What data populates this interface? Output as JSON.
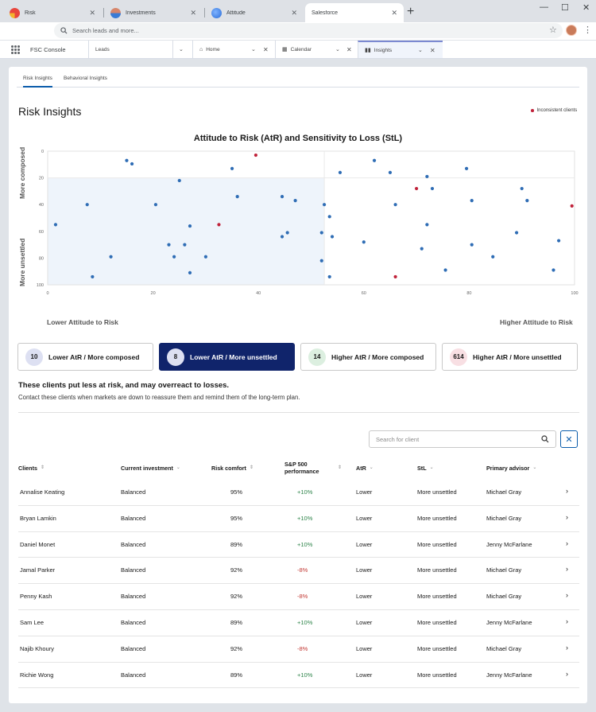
{
  "browser": {
    "tabs": [
      {
        "label": "Risk",
        "color": "#e8453c"
      },
      {
        "label": "Investments",
        "color": "#d7866b"
      },
      {
        "label": "Attitude",
        "color": "#2a6dd8"
      },
      {
        "label": "Salesforce",
        "color": ""
      }
    ],
    "search_placeholder": "Search leads and more..."
  },
  "console": {
    "app_name": "FSC Console",
    "tabs": [
      {
        "label": "Leads"
      },
      {
        "label": "Home",
        "icon": "home-icon"
      },
      {
        "label": "Calendar",
        "icon": "calendar-icon"
      },
      {
        "label": "Insights",
        "icon": "insights-icon"
      }
    ]
  },
  "page": {
    "subtabs": [
      "Risk Insights",
      "Behavioral Insights"
    ],
    "title": "Risk Insights",
    "legend_label": "Inconsistent clients"
  },
  "chart_data": {
    "type": "scatter",
    "title": "Attitude to Risk (AtR) and Sensitivity to Loss (StL)",
    "x_axis_left_label": "Lower Attitude to Risk",
    "x_axis_right_label": "Higher Attitude to Risk",
    "y_axis_top_label": "More composed",
    "y_axis_bottom_label": "More unsettled",
    "xlim": [
      0,
      100
    ],
    "ylim": [
      0,
      100
    ],
    "x_ticks": [
      0,
      20,
      40,
      60,
      80,
      100
    ],
    "y_ticks": [
      0,
      20,
      40,
      60,
      80,
      100
    ],
    "y_inverted": true,
    "highlighted_region": {
      "x": [
        0,
        52.5
      ],
      "y": [
        20,
        100
      ]
    },
    "colors": {
      "consistent": "#2f6db5",
      "inconsistent": "#c0223a"
    },
    "series": [
      {
        "name": "",
        "points": [
          [
            1.5,
            55
          ],
          [
            7.5,
            40
          ],
          [
            8.5,
            94
          ],
          [
            12,
            79
          ],
          [
            15,
            7
          ],
          [
            16,
            9.5
          ],
          [
            20.5,
            40
          ],
          [
            23,
            70
          ],
          [
            24,
            79
          ],
          [
            25,
            22
          ],
          [
            26,
            70
          ],
          [
            27,
            56
          ],
          [
            27,
            91
          ],
          [
            30,
            79
          ],
          [
            35,
            13
          ],
          [
            36,
            34
          ],
          [
            44.5,
            34
          ],
          [
            44.5,
            64
          ],
          [
            45.5,
            61
          ],
          [
            47,
            37
          ],
          [
            52,
            61
          ],
          [
            52,
            82
          ],
          [
            52.5,
            40
          ],
          [
            53.5,
            94
          ],
          [
            53.5,
            49
          ],
          [
            54,
            64
          ],
          [
            55.5,
            16
          ],
          [
            60,
            68
          ],
          [
            62,
            7
          ],
          [
            65,
            16
          ],
          [
            66,
            40
          ],
          [
            71,
            73
          ],
          [
            72,
            55
          ],
          [
            72,
            19
          ],
          [
            73,
            28
          ],
          [
            75.5,
            89
          ],
          [
            79.5,
            13
          ],
          [
            80.5,
            37
          ],
          [
            80.5,
            70
          ],
          [
            84.5,
            79
          ],
          [
            89,
            61
          ],
          [
            90,
            28
          ],
          [
            91,
            37
          ],
          [
            96,
            89
          ],
          [
            97,
            67
          ]
        ]
      },
      {
        "name": "Inconsistent clients",
        "points": [
          [
            39.5,
            3
          ],
          [
            32.5,
            55
          ],
          [
            70,
            28
          ],
          [
            66,
            94
          ],
          [
            99.5,
            41
          ]
        ]
      }
    ]
  },
  "segments": [
    {
      "count": "10",
      "label": "Lower AtR / More composed",
      "badge_color": "#dde0f2",
      "selected": false
    },
    {
      "count": "8",
      "label": "Lower AtR / More unsettled",
      "badge_color": "#dde0f2",
      "selected": true
    },
    {
      "count": "14",
      "label": "Higher AtR / More composed",
      "badge_color": "#dcefe0",
      "selected": false
    },
    {
      "count": "614",
      "label": "Higher AtR / More unsettled",
      "badge_color": "#f8dfe3",
      "selected": false
    }
  ],
  "segment_detail": {
    "heading": "These clients put less at risk, and may overreact to losses.",
    "body": "Contact these clients when markets are down to reassure them and remind them of the long-term plan."
  },
  "client_search": {
    "placeholder": "Search for client",
    "value": ""
  },
  "table": {
    "columns": [
      "Clients",
      "Current investment",
      "Risk comfort",
      "S&P 500 performance",
      "AtR",
      "StL",
      "Primary advisor"
    ],
    "rows": [
      {
        "client": "Annalise Keating",
        "investment": "Balanced",
        "comfort": "95%",
        "perf": "+10%",
        "atr": "Lower",
        "stl": "More unsettled",
        "advisor": "Michael Gray"
      },
      {
        "client": "Bryan Lamkin",
        "investment": "Balanced",
        "comfort": "95%",
        "perf": "+10%",
        "atr": "Lower",
        "stl": "More unsettled",
        "advisor": "Michael Gray"
      },
      {
        "client": "Daniel Monet",
        "investment": "Balanced",
        "comfort": "89%",
        "perf": "+10%",
        "atr": "Lower",
        "stl": "More unsettled",
        "advisor": "Jenny McFarlane"
      },
      {
        "client": "Jamal Parker",
        "investment": "Balanced",
        "comfort": "92%",
        "perf": "-8%",
        "atr": "Lower",
        "stl": "More unsettled",
        "advisor": "Michael Gray"
      },
      {
        "client": "Penny Kash",
        "investment": "Balanced",
        "comfort": "92%",
        "perf": "-8%",
        "atr": "Lower",
        "stl": "More unsettled",
        "advisor": "Michael Gray"
      },
      {
        "client": "Sam Lee",
        "investment": "Balanced",
        "comfort": "89%",
        "perf": "+10%",
        "atr": "Lower",
        "stl": "More unsettled",
        "advisor": "Jenny McFarlane"
      },
      {
        "client": "Najib Khoury",
        "investment": "Balanced",
        "comfort": "92%",
        "perf": "-8%",
        "atr": "Lower",
        "stl": "More unsettled",
        "advisor": "Michael Gray"
      },
      {
        "client": "Richie Wong",
        "investment": "Balanced",
        "comfort": "89%",
        "perf": "+10%",
        "atr": "Lower",
        "stl": "More unsettled",
        "advisor": "Jenny McFarlane"
      }
    ]
  }
}
